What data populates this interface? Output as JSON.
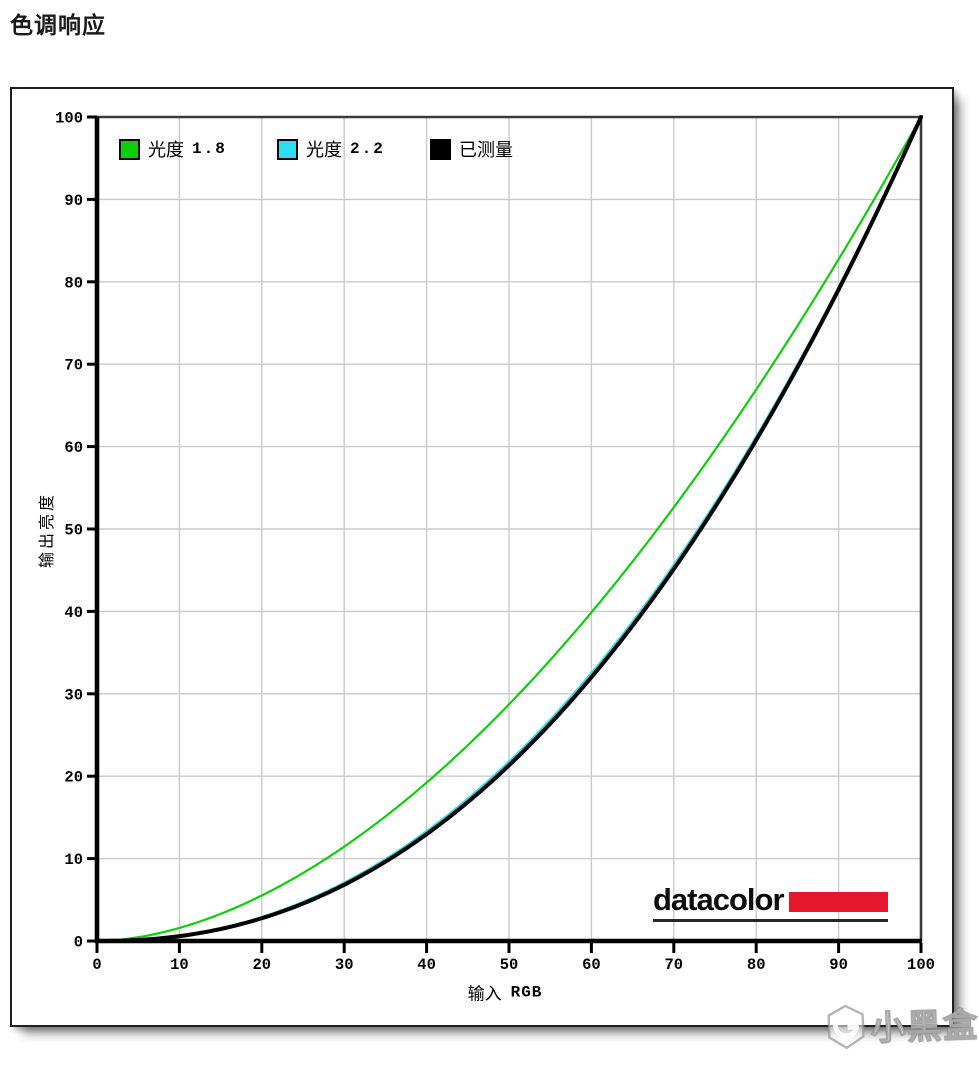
{
  "page": {
    "title": "色调响应"
  },
  "chart_data": {
    "type": "line",
    "title": "色调响应",
    "xlabel": "输入 RGB",
    "xlabel_cn": "输入",
    "xlabel_en": "RGB",
    "ylabel": "输出亮度",
    "xlim": [
      0,
      100
    ],
    "ylim": [
      0,
      100
    ],
    "xticks": [
      0,
      10,
      20,
      30,
      40,
      50,
      60,
      70,
      80,
      90,
      100
    ],
    "yticks": [
      0,
      10,
      20,
      30,
      40,
      50,
      60,
      70,
      80,
      90,
      100
    ],
    "grid": true,
    "grid_color": "#cacaca",
    "frame_color": "#3a3a3a",
    "axis_color": "#000000",
    "legend_position": "top-left-inside",
    "x": [
      0,
      10,
      20,
      30,
      40,
      50,
      60,
      70,
      80,
      90,
      100
    ],
    "series": [
      {
        "name": "光度 1.8",
        "label": "光度",
        "value": "1.8",
        "color": "#0ccf0c",
        "gamma": 1.8,
        "width": 2.2,
        "values": [
          0,
          1.6,
          5.5,
          11.5,
          19.2,
          28.7,
          39.9,
          52.6,
          66.9,
          82.7,
          100
        ]
      },
      {
        "name": "光度 2.2",
        "label": "光度",
        "value": "2.2",
        "color": "#2adfee",
        "gamma": 2.2,
        "width": 2.4,
        "values": [
          0,
          0.6,
          2.9,
          7.1,
          13.3,
          21.8,
          32.5,
          45.6,
          61.2,
          79.3,
          100
        ]
      },
      {
        "name": "已测量",
        "label": "已测量",
        "value": "",
        "color": "#000000",
        "gamma": 2.23,
        "width": 4,
        "values": [
          0,
          0.6,
          2.8,
          6.8,
          13.0,
          21.3,
          32.0,
          45.1,
          60.8,
          79.1,
          100
        ]
      }
    ]
  },
  "logo": {
    "text": "datacolor",
    "bar_color": "#e5172d"
  },
  "watermark": {
    "text": "小黑盒"
  }
}
